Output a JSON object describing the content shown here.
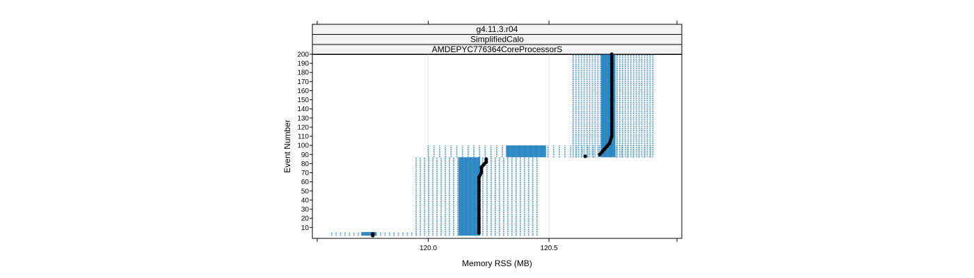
{
  "chart_data": {
    "type": "scatter",
    "panel": {
      "strips": [
        "g4.11.3.r04",
        "SimplifiedCalo",
        "AMDEPYC776364CoreProcessorS"
      ]
    },
    "xlabel": "Memory RSS (MB)",
    "ylabel": "Event Number",
    "xlim": [
      119.52,
      121.05
    ],
    "ylim": [
      -2,
      200
    ],
    "x_ticks": [
      120.0,
      120.5
    ],
    "y_ticks": [
      10,
      20,
      30,
      40,
      50,
      60,
      70,
      80,
      90,
      100,
      110,
      120,
      130,
      140,
      150,
      160,
      170,
      180,
      190,
      200
    ],
    "grid": true,
    "colors": {
      "runs": "#1f7fbf",
      "median": "#000000",
      "strip_fill": "#f2f2f2",
      "grid": "#e6e6e6"
    },
    "runs_series": {
      "name": "",
      "clusters": [
        {
          "event_range": [
            1,
            5
          ],
          "x_range": [
            119.6,
            119.95
          ],
          "runs": 20
        },
        {
          "event_range": [
            1,
            87
          ],
          "x_range": [
            119.95,
            120.45
          ],
          "runs": 30
        },
        {
          "event_range": [
            87,
            100
          ],
          "x_range": [
            120.0,
            120.92
          ],
          "runs": 40
        },
        {
          "event_range": [
            87,
            200
          ],
          "x_range": [
            120.6,
            120.93
          ],
          "runs": 30
        }
      ]
    },
    "median_series": {
      "name": "",
      "points": [
        [
          119.77,
          1
        ],
        [
          119.77,
          2
        ],
        [
          119.77,
          3
        ],
        [
          120.21,
          4
        ],
        [
          120.21,
          10
        ],
        [
          120.21,
          20
        ],
        [
          120.21,
          30
        ],
        [
          120.21,
          40
        ],
        [
          120.21,
          50
        ],
        [
          120.21,
          60
        ],
        [
          120.21,
          65
        ],
        [
          120.22,
          70
        ],
        [
          120.22,
          76
        ],
        [
          120.23,
          79
        ],
        [
          120.24,
          82
        ],
        [
          120.24,
          85
        ],
        [
          120.65,
          88
        ],
        [
          120.71,
          90
        ],
        [
          120.72,
          93
        ],
        [
          120.73,
          96
        ],
        [
          120.74,
          99
        ],
        [
          120.75,
          102
        ],
        [
          120.76,
          110
        ],
        [
          120.76,
          130
        ],
        [
          120.76,
          150
        ],
        [
          120.76,
          170
        ],
        [
          120.76,
          190
        ],
        [
          120.76,
          200
        ]
      ]
    }
  }
}
